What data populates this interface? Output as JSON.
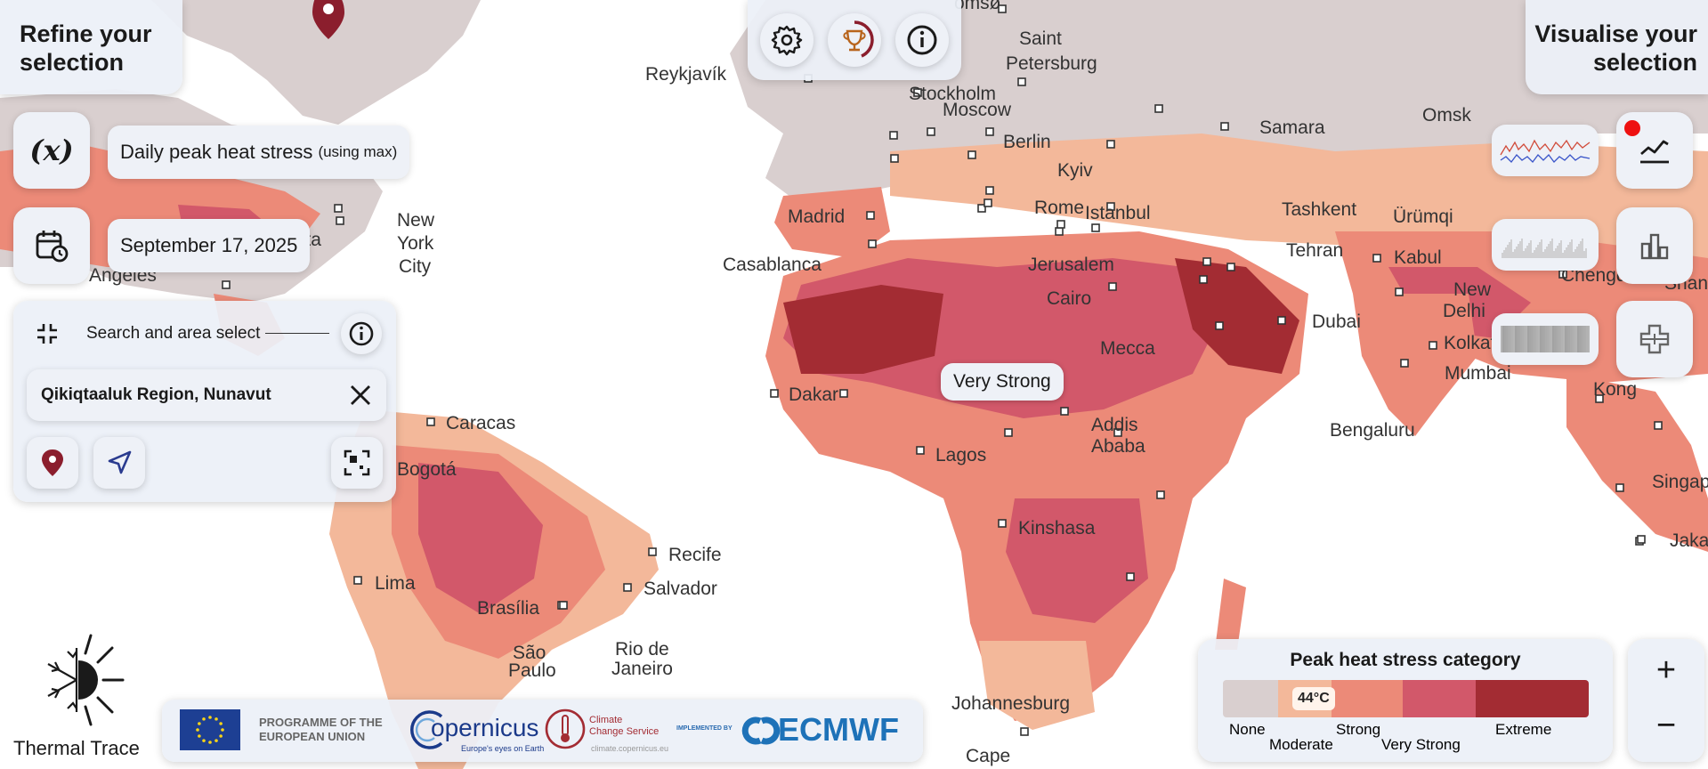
{
  "left_panel": {
    "heading": "Refine your selection",
    "variable_icon_text": "(x)",
    "variable": {
      "main": "Daily peak heat stress",
      "suffix": "(using max)"
    },
    "date": "September 17, 2025",
    "search": {
      "label": "Search and area select",
      "value": "Qikiqtaaluk Region, Nunavut"
    }
  },
  "right_panel": {
    "heading": "Visualise your selection"
  },
  "top_toolbar": {
    "icons": [
      "settings-icon",
      "trophy-icon",
      "info-icon"
    ]
  },
  "map": {
    "tooltip": "Very Strong",
    "cities": [
      {
        "name": "Reykjavík"
      },
      {
        "name": "Saint"
      },
      {
        "name": "Petersburg"
      },
      {
        "name": "Stockholm"
      },
      {
        "name": "Moscow"
      },
      {
        "name": "Samara"
      },
      {
        "name": "Omsk"
      },
      {
        "name": "Berlin"
      },
      {
        "name": "Kyiv"
      },
      {
        "name": "Madrid"
      },
      {
        "name": "Rome"
      },
      {
        "name": "Istanbul"
      },
      {
        "name": "Tashkent"
      },
      {
        "name": "Ürümqi"
      },
      {
        "name": "Casablanca"
      },
      {
        "name": "Jerusalem"
      },
      {
        "name": "Tehran"
      },
      {
        "name": "Kabul"
      },
      {
        "name": "New"
      },
      {
        "name": "Delhi"
      },
      {
        "name": "Chengdu"
      },
      {
        "name": "Cairo"
      },
      {
        "name": "Dubai"
      },
      {
        "name": "Mecca"
      },
      {
        "name": "Kolkata"
      },
      {
        "name": "Mumbai"
      },
      {
        "name": "Kong"
      },
      {
        "name": "Dakar"
      },
      {
        "name": "Addis"
      },
      {
        "name": "Ababa"
      },
      {
        "name": "Lagos"
      },
      {
        "name": "Bengaluru"
      },
      {
        "name": "Singapo"
      },
      {
        "name": "Jakart"
      },
      {
        "name": "Kinshasa"
      },
      {
        "name": "Caracas"
      },
      {
        "name": "Bogotá"
      },
      {
        "name": "Recife"
      },
      {
        "name": "Salvador"
      },
      {
        "name": "Lima"
      },
      {
        "name": "Brasília"
      },
      {
        "name": "São"
      },
      {
        "name": "Paulo"
      },
      {
        "name": "Rio de"
      },
      {
        "name": "Janeiro"
      },
      {
        "name": "Johannesburg"
      },
      {
        "name": "Cape"
      },
      {
        "name": "New"
      },
      {
        "name": "York"
      },
      {
        "name": "City"
      },
      {
        "name": "anta"
      },
      {
        "name": "Angeles"
      },
      {
        "name": "omsø"
      },
      {
        "name": "Shangh"
      }
    ]
  },
  "legend": {
    "title": "Peak heat stress category",
    "marker": "44°C",
    "categories": [
      {
        "label": "None",
        "color": "#d9cfcf"
      },
      {
        "label": "Moderate",
        "color": "#f3b89a"
      },
      {
        "label": "Strong",
        "color": "#ec8a78"
      },
      {
        "label": "Very Strong",
        "color": "#d2586a"
      },
      {
        "label": "Extreme",
        "color": "#a32c33"
      }
    ]
  },
  "logos": {
    "programme": "PROGRAMME OF THE EUROPEAN UNION",
    "programme_line1": "PROGRAMME OF THE",
    "programme_line2": "EUROPEAN UNION",
    "copernicus": "opernicus",
    "copernicus_tag": "Europe's eyes on Earth",
    "climate_line1": "Climate",
    "climate_line2": "Change Service",
    "climate_url": "climate.copernicus.eu",
    "implemented": "IMPLEMENTED BY",
    "ecmwf": "ECMWF"
  },
  "brand": {
    "name": "Thermal Trace"
  },
  "zoom": {
    "in": "+",
    "out": "−"
  },
  "colors": {
    "land": "#d9cfcf",
    "moderate": "#f3b89a",
    "strong": "#ec8a78",
    "very_strong": "#d2586a",
    "extreme": "#a32c33",
    "accent": "#8b1e2d"
  }
}
